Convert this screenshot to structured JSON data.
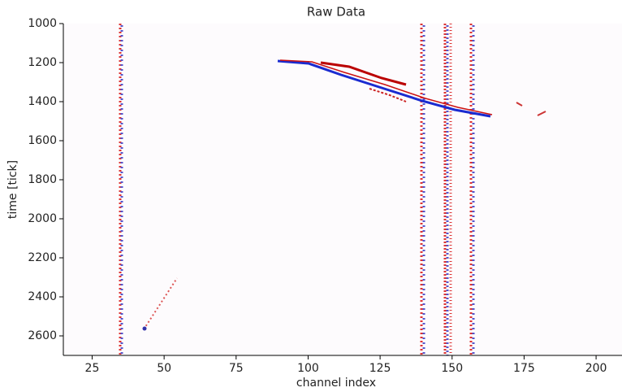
{
  "chart_data": {
    "type": "image",
    "title": "Raw Data",
    "x_label": "channel index",
    "y_label": "time [tick]",
    "xlim": [
      15,
      209
    ],
    "ylim": [
      1000,
      2700
    ],
    "y_inverted": true,
    "xticks": [
      25,
      50,
      75,
      100,
      125,
      150,
      175,
      200
    ],
    "yticks": [
      1000,
      1200,
      1400,
      1600,
      1800,
      2000,
      2200,
      2400,
      2600
    ]
  }
}
